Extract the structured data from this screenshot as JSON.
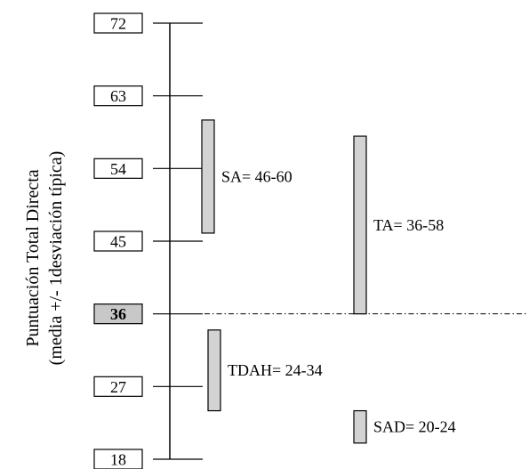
{
  "chart_data": {
    "type": "range",
    "ylabel": [
      "Puntuación Total Directa",
      "(media +/- 1desviación típica)"
    ],
    "ylim": [
      18,
      72
    ],
    "ticks": [
      72,
      63,
      54,
      45,
      36,
      27,
      18
    ],
    "highlight_tick": 36,
    "reference_line": 36,
    "series": [
      {
        "name": "SA",
        "low": 46,
        "high": 60,
        "label": "SA= 46-60"
      },
      {
        "name": "TA",
        "low": 36,
        "high": 58,
        "label": "TA= 36-58"
      },
      {
        "name": "TDAH",
        "low": 24,
        "high": 34,
        "label": "TDAH= 24-34"
      },
      {
        "name": "SAD",
        "low": 20,
        "high": 24,
        "label": "SAD= 20-24"
      }
    ],
    "colors": {
      "bar_fill": "#d3d3d3",
      "highlight_fill": "#c8c8c8",
      "stroke": "#000000"
    }
  }
}
